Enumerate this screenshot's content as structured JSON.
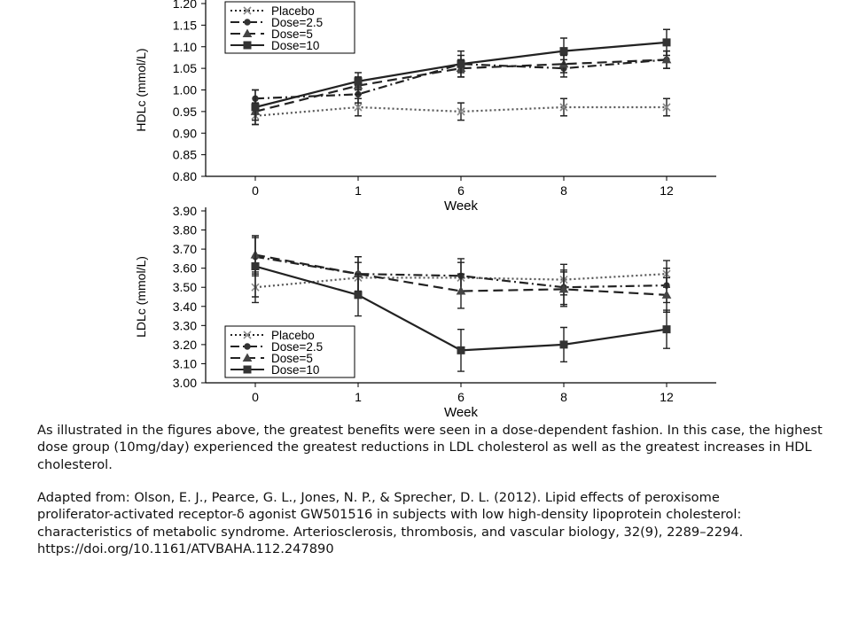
{
  "chart_data": [
    {
      "type": "line",
      "id": "hdl",
      "xlabel": "Week",
      "ylabel": "HDLc (mmol/L)",
      "categories": [
        "0",
        "1",
        "6",
        "8",
        "12"
      ],
      "ylim": [
        0.8,
        1.2
      ],
      "yticks": [
        "0.80",
        "0.85",
        "0.90",
        "0.95",
        "1.00",
        "1.05",
        "1.10",
        "1.15",
        "1.20"
      ],
      "legend_position": "top-left",
      "grid": false,
      "series": [
        {
          "name": "Placebo",
          "style": "dotted",
          "marker": "x",
          "values": [
            0.94,
            0.96,
            0.95,
            0.96,
            0.96
          ],
          "err": [
            0.02,
            0.02,
            0.02,
            0.02,
            0.02
          ]
        },
        {
          "name": "Dose=2.5",
          "style": "dashdot",
          "marker": "circle",
          "values": [
            0.98,
            0.99,
            1.06,
            1.05,
            1.07
          ],
          "err": [
            0.02,
            0.02,
            0.02,
            0.02,
            0.02
          ]
        },
        {
          "name": "Dose=5",
          "style": "dashed",
          "marker": "triangle",
          "values": [
            0.95,
            1.01,
            1.05,
            1.06,
            1.07
          ],
          "err": [
            0.02,
            0.02,
            0.02,
            0.02,
            0.02
          ]
        },
        {
          "name": "Dose=10",
          "style": "solid",
          "marker": "square",
          "values": [
            0.96,
            1.02,
            1.06,
            1.09,
            1.11
          ],
          "err": [
            0.04,
            0.02,
            0.03,
            0.03,
            0.03
          ]
        }
      ]
    },
    {
      "type": "line",
      "id": "ldl",
      "xlabel": "Week",
      "ylabel": "LDLc (mmol/L)",
      "categories": [
        "0",
        "1",
        "6",
        "8",
        "12"
      ],
      "ylim": [
        3.0,
        3.9
      ],
      "yticks": [
        "3.00",
        "3.10",
        "3.20",
        "3.30",
        "3.40",
        "3.50",
        "3.60",
        "3.70",
        "3.80",
        "3.90"
      ],
      "legend_position": "bottom-left",
      "grid": false,
      "series": [
        {
          "name": "Placebo",
          "style": "dotted",
          "marker": "x",
          "values": [
            3.5,
            3.55,
            3.55,
            3.54,
            3.57
          ],
          "err": [
            0.08,
            0.08,
            0.08,
            0.08,
            0.07
          ]
        },
        {
          "name": "Dose=2.5",
          "style": "dashdot",
          "marker": "circle",
          "values": [
            3.66,
            3.57,
            3.56,
            3.5,
            3.51
          ],
          "err": [
            0.1,
            0.09,
            0.09,
            0.09,
            0.09
          ]
        },
        {
          "name": "Dose=5",
          "style": "dashed",
          "marker": "triangle",
          "values": [
            3.67,
            3.57,
            3.48,
            3.49,
            3.46
          ],
          "err": [
            0.1,
            0.09,
            0.09,
            0.09,
            0.09
          ]
        },
        {
          "name": "Dose=10",
          "style": "solid",
          "marker": "square",
          "values": [
            3.61,
            3.46,
            3.17,
            3.2,
            3.28
          ],
          "err": [
            0.16,
            0.11,
            0.11,
            0.09,
            0.1
          ]
        }
      ]
    }
  ],
  "text": {
    "paragraph": "As illustrated in the figures above, the greatest benefits were seen in a dose-dependent fashion. In this case, the highest dose group (10mg/day) experienced the greatest reductions in LDL cholesterol as well as the greatest increases in HDL cholesterol.",
    "citation_lines": [
      "Adapted from: Olson, E. J., Pearce, G. L., Jones, N. P., & Sprecher, D. L. (2012). Lipid effects of peroxisome",
      "proliferator-activated receptor-δ agonist GW501516 in subjects with low high-density lipoprotein cholesterol:",
      "characteristics of metabolic syndrome. Arteriosclerosis, thrombosis, and vascular biology, 32(9), 2289–2294.",
      "https://doi.org/10.1161/ATVBAHA.112.247890"
    ]
  }
}
